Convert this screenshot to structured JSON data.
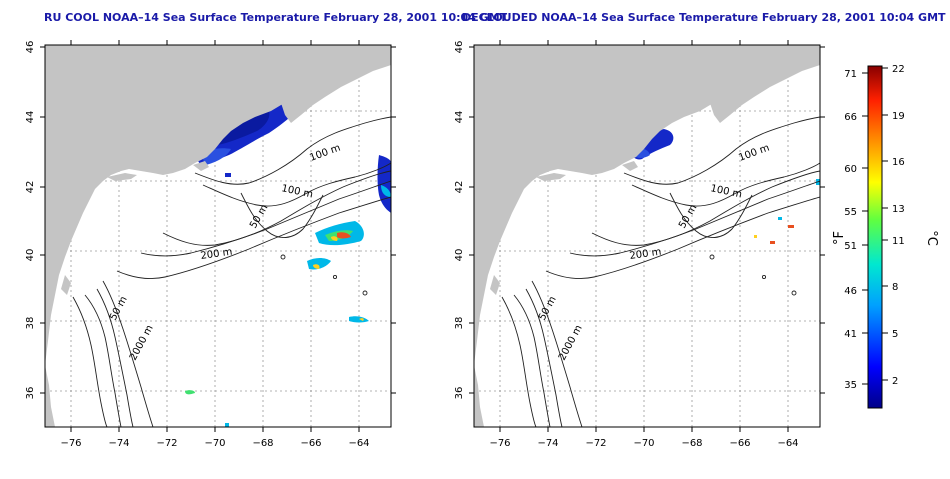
{
  "panels": [
    {
      "title": "RU COOL NOAA–14 Sea Surface Temperature February 28, 2001 10:04 GMT",
      "contour_labels": [
        "100 m",
        "100 m",
        "50 m",
        "200 m",
        "50 m",
        "2000 m"
      ]
    },
    {
      "title": "DECLOUDED NOAA–14 Sea Surface Temperature February 28, 2001 10:04 GMT",
      "contour_labels": [
        "100 m",
        "100 m",
        "50 m",
        "200 m",
        "50 m",
        "2000 m"
      ]
    }
  ],
  "axes": {
    "x_ticks": [
      "−76",
      "−74",
      "−72",
      "−70",
      "−68",
      "−66",
      "−64"
    ],
    "y_ticks": [
      "46",
      "44",
      "42",
      "40",
      "38",
      "36"
    ]
  },
  "colorbar": {
    "fahrenheit_unit": "°F",
    "celsius_unit": "°C",
    "fahrenheit_labels": [
      "71",
      "66",
      "60",
      "55",
      "51",
      "46",
      "41",
      "35"
    ],
    "celsius_labels": [
      "22",
      "19",
      "16",
      "13",
      "11",
      "8",
      "5",
      "2"
    ]
  },
  "colors": {
    "land": "#c4c4c4",
    "title": "#1a1aa8",
    "cold": "#1428c8",
    "warm": "#e85020"
  }
}
